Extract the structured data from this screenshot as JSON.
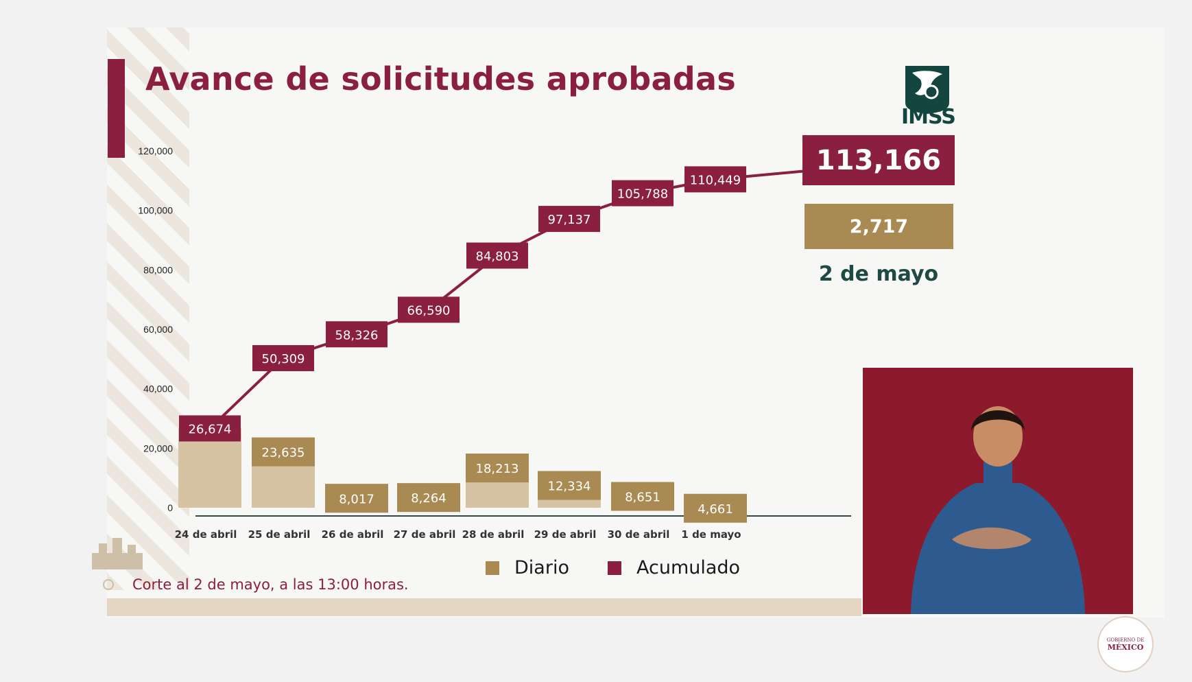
{
  "header": {
    "title": "Avance de solicitudes aprobadas",
    "logo_text": "IMSS"
  },
  "summary": {
    "total": "113,166",
    "daily": "2,717",
    "date": "2 de mayo"
  },
  "colors": {
    "accumulated": "#8b1f3f",
    "daily": "#a88a52",
    "daily_bar": "#d6c3a3",
    "axis": "#2f4a44",
    "date_text": "#1f4a43"
  },
  "legend": {
    "daily_label": "Diario",
    "accumulated_label": "Acumulado"
  },
  "footnote": "Corte al 2 de mayo, a las 13:00 horas.",
  "seal": {
    "line1": "GOBIERNO DE",
    "line2": "MÉXICO"
  },
  "chart_data": {
    "type": "bar",
    "categories": [
      "24 de abril",
      "25 de abril",
      "26 de abril",
      "27 de abril",
      "28 de abril",
      "29 de abril",
      "30 de abril",
      "1 de mayo"
    ],
    "series": [
      {
        "name": "Diario",
        "values": [
          26674,
          23635,
          8017,
          8264,
          18213,
          12334,
          8651,
          4661
        ],
        "labels": [
          "",
          "23,635",
          "8,017",
          "8,264",
          "18,213",
          "12,334",
          "8,651",
          "4,661"
        ]
      },
      {
        "name": "Acumulado",
        "values": [
          26674,
          50309,
          58326,
          66590,
          84803,
          97137,
          105788,
          110449
        ],
        "labels": [
          "26,674",
          "50,309",
          "58,326",
          "66,590",
          "84,803",
          "97,137",
          "105,788",
          "110,449"
        ]
      }
    ],
    "yticks": [
      "120,000",
      "100,000",
      "80,000",
      "60,000",
      "40,000",
      "20,000",
      "0"
    ],
    "ytick_values": [
      120000,
      100000,
      80000,
      60000,
      40000,
      20000,
      0
    ],
    "ylim": [
      0,
      120000
    ],
    "grid": false,
    "legend_position": "bottom"
  }
}
